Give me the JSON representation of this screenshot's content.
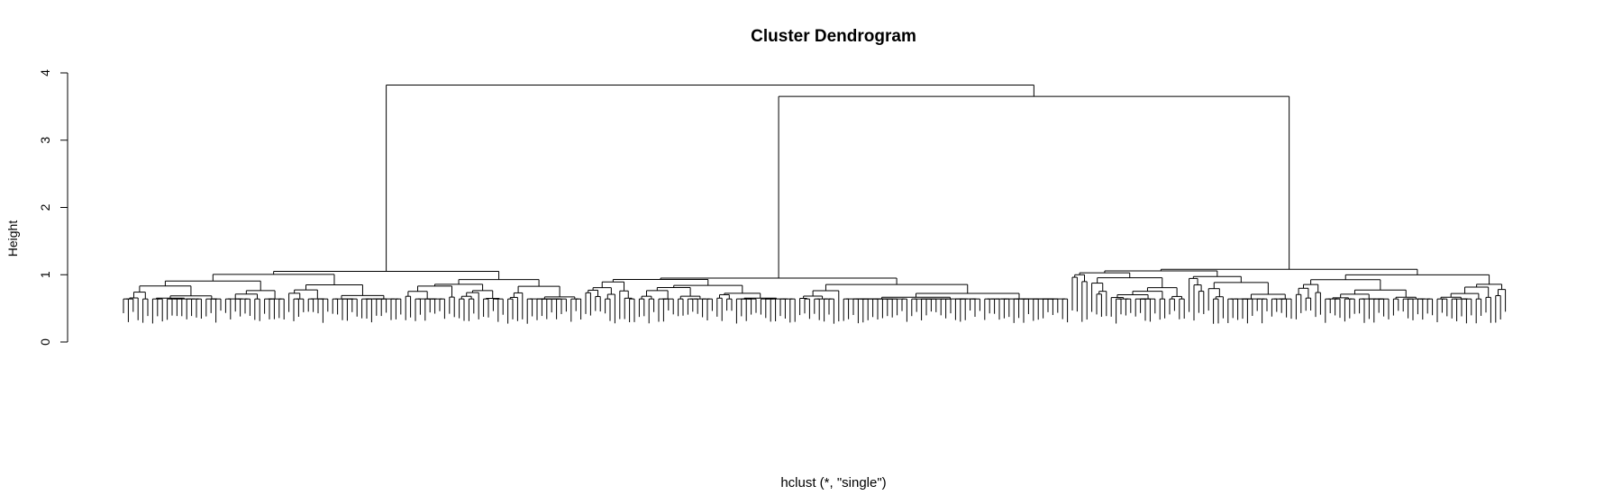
{
  "chart_data": {
    "type": "dendrogram",
    "title": "Cluster Dendrogram",
    "ylabel": "Height",
    "xlabel": "",
    "sub": "hclust (*, \"single\")",
    "ylim": [
      0,
      4
    ],
    "yticks": [
      0,
      1,
      2,
      3,
      4
    ],
    "leaves_visible": false,
    "clusters": [
      {
        "name": "left",
        "n_leaves": 95,
        "root_height": 1.05
      },
      {
        "name": "middle",
        "n_leaves": 100,
        "root_height": 0.95
      },
      {
        "name": "right",
        "n_leaves": 90,
        "root_height": 1.08
      }
    ],
    "merges": [
      {
        "between": [
          "middle",
          "right"
        ],
        "height": 3.65
      },
      {
        "between": [
          "left",
          "middle+right"
        ],
        "height": 3.82
      }
    ]
  }
}
